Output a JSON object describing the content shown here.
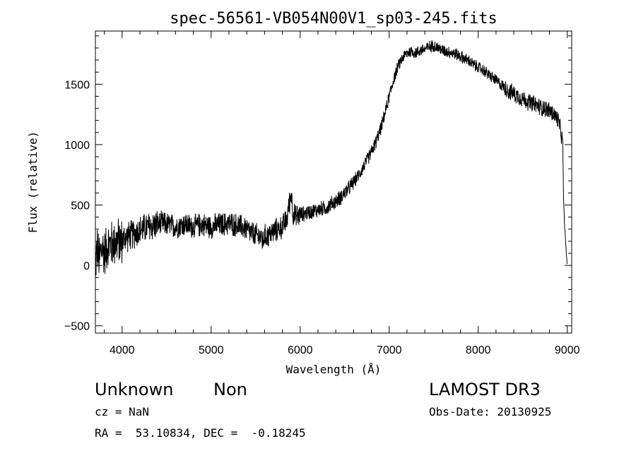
{
  "chart_data": {
    "type": "line",
    "title": "spec-56561-VB054N00V1_sp03-245.fits",
    "xlabel": "Wavelength (Å)",
    "ylabel": "Flux (relative)",
    "xlim": [
      3700,
      9050
    ],
    "ylim": [
      -560,
      1940
    ],
    "x_ticks": [
      4000,
      5000,
      6000,
      7000,
      8000,
      9000
    ],
    "y_ticks": [
      -500,
      0,
      500,
      1000,
      1500
    ],
    "x_minor_step": 200,
    "y_minor_step": 100,
    "series": [
      {
        "name": "flux",
        "x": [
          3700,
          3720,
          3740,
          3760,
          3780,
          3800,
          3830,
          3860,
          3890,
          3920,
          3950,
          3980,
          4000,
          4030,
          4060,
          4100,
          4150,
          4200,
          4250,
          4300,
          4350,
          4400,
          4450,
          4500,
          4550,
          4600,
          4650,
          4700,
          4750,
          4800,
          4850,
          4900,
          4950,
          5000,
          5050,
          5100,
          5150,
          5200,
          5250,
          5300,
          5350,
          5400,
          5450,
          5500,
          5550,
          5580,
          5600,
          5650,
          5700,
          5750,
          5800,
          5850,
          5880,
          5900,
          5920,
          5950,
          6000,
          6050,
          6100,
          6150,
          6200,
          6250,
          6300,
          6350,
          6400,
          6450,
          6500,
          6550,
          6600,
          6650,
          6700,
          6750,
          6800,
          6850,
          6900,
          6950,
          7000,
          7050,
          7100,
          7150,
          7200,
          7250,
          7300,
          7350,
          7400,
          7450,
          7500,
          7550,
          7600,
          7650,
          7700,
          7750,
          7800,
          7850,
          7900,
          7950,
          8000,
          8050,
          8100,
          8150,
          8200,
          8250,
          8300,
          8350,
          8400,
          8450,
          8500,
          8550,
          8600,
          8650,
          8700,
          8750,
          8800,
          8850,
          8900,
          8930,
          8950,
          8960,
          8980,
          9000
        ],
        "y": [
          0,
          150,
          50,
          100,
          150,
          100,
          160,
          170,
          180,
          190,
          200,
          200,
          200,
          230,
          240,
          250,
          270,
          290,
          310,
          320,
          330,
          340,
          350,
          340,
          330,
          320,
          330,
          340,
          330,
          320,
          330,
          340,
          330,
          320,
          330,
          340,
          340,
          350,
          340,
          330,
          320,
          300,
          270,
          250,
          240,
          200,
          240,
          250,
          280,
          300,
          320,
          380,
          520,
          600,
          430,
          400,
          420,
          430,
          440,
          450,
          460,
          470,
          480,
          510,
          530,
          560,
          600,
          640,
          690,
          740,
          800,
          870,
          940,
          1020,
          1120,
          1250,
          1400,
          1540,
          1650,
          1720,
          1760,
          1770,
          1760,
          1780,
          1790,
          1810,
          1820,
          1800,
          1780,
          1770,
          1760,
          1750,
          1730,
          1710,
          1690,
          1660,
          1640,
          1620,
          1590,
          1560,
          1530,
          1500,
          1470,
          1440,
          1420,
          1400,
          1380,
          1360,
          1340,
          1330,
          1310,
          1300,
          1280,
          1250,
          1200,
          1100,
          1000,
          500,
          200,
          0
        ]
      }
    ]
  },
  "info": {
    "object_class": "Unknown",
    "subclass": "Non",
    "survey": "LAMOST DR3",
    "redshift": "cz = NaN",
    "obs_date": "Obs-Date: 20130925",
    "coords": "RA =  53.10834, DEC =  -0.18245"
  }
}
